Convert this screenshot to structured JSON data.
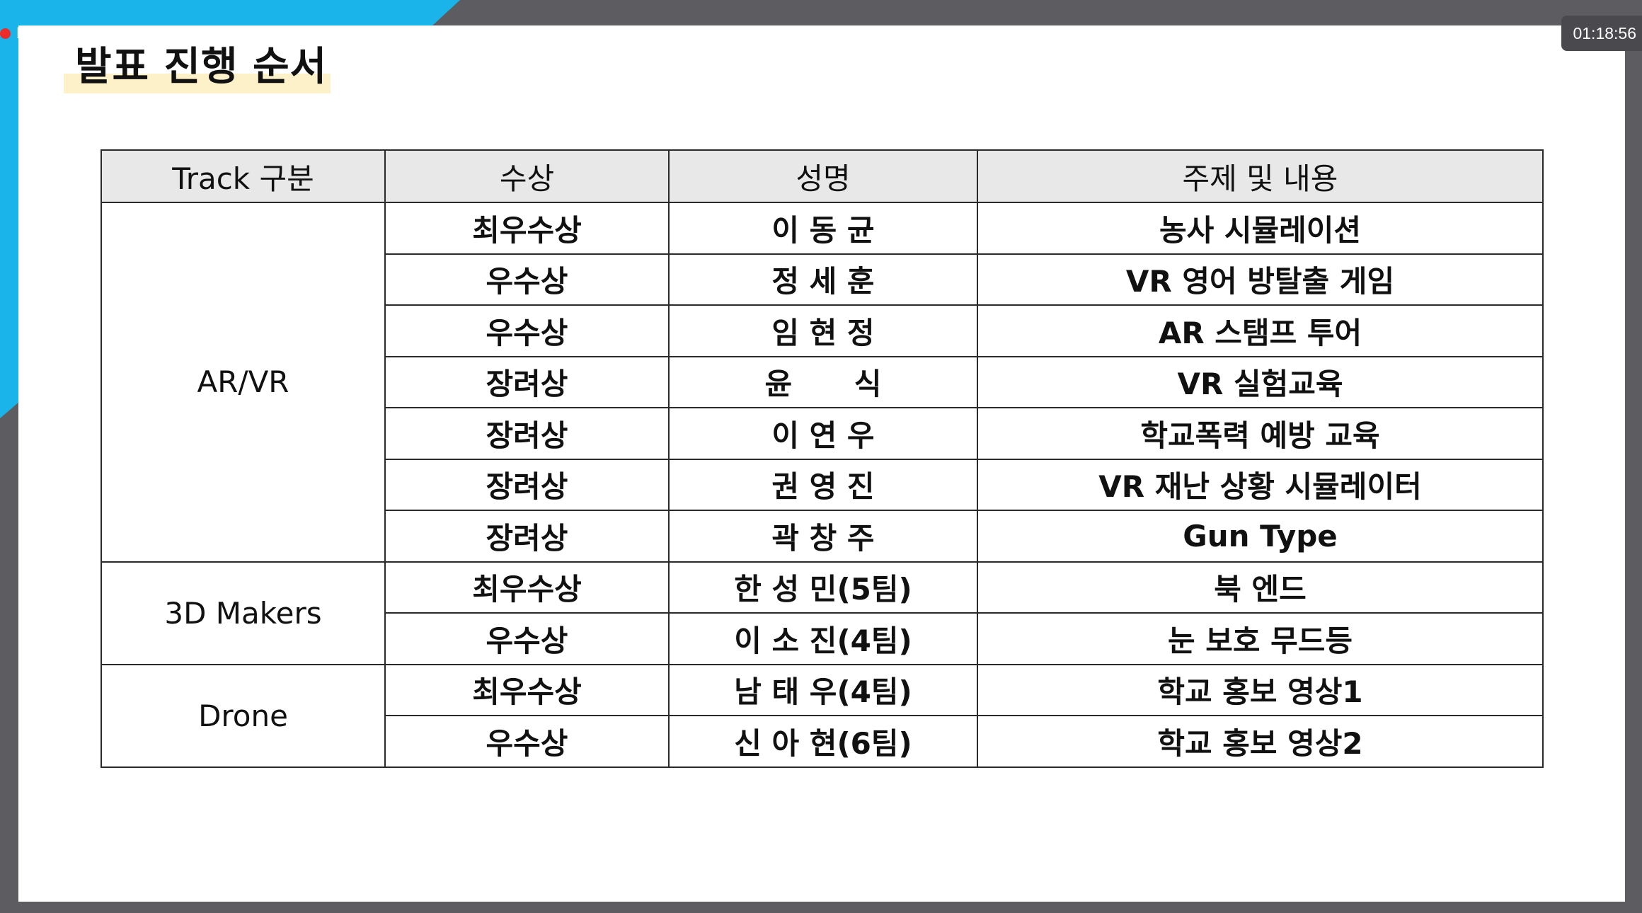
{
  "recording": {
    "label": "Recording"
  },
  "timer": "01:18:56",
  "slide": {
    "title": "발표 진행 순서"
  },
  "table": {
    "headers": [
      "Track 구분",
      "수상",
      "성명",
      "주제 및 내용"
    ],
    "groups": [
      {
        "track": "AR/VR",
        "rows": [
          {
            "award": "최우수상",
            "name": "이 동 균",
            "topic": "농사 시뮬레이션"
          },
          {
            "award": "우수상",
            "name": "정 세 훈",
            "topic": "VR 영어 방탈출 게임"
          },
          {
            "award": "우수상",
            "name": "임 현 정",
            "topic": "AR 스탬프 투어"
          },
          {
            "award": "장려상",
            "name": "윤      식",
            "topic": "VR 실험교육"
          },
          {
            "award": "장려상",
            "name": "이 연 우",
            "topic": "학교폭력 예방 교육"
          },
          {
            "award": "장려상",
            "name": "권 영 진",
            "topic": "VR 재난 상황 시뮬레이터"
          },
          {
            "award": "장려상",
            "name": "곽 창 주",
            "topic": "Gun Type"
          }
        ]
      },
      {
        "track": "3D Makers",
        "rows": [
          {
            "award": "최우수상",
            "name": "한 성 민(5팀)",
            "topic": "북 엔드"
          },
          {
            "award": "우수상",
            "name": "이 소 진(4팀)",
            "topic": "눈 보호 무드등"
          }
        ]
      },
      {
        "track": "Drone",
        "rows": [
          {
            "award": "최우수상",
            "name": "남 태 우(4팀)",
            "topic": "학교 홍보 영상1"
          },
          {
            "award": "우수상",
            "name": "신 아 현(6팀)",
            "topic": "학교 홍보 영상2"
          }
        ]
      }
    ]
  },
  "colors": {
    "accent": "#1ab3ea",
    "frame": "#5d5c60",
    "title_highlight": "#fdf1c9",
    "header_fill": "#e8e8e8",
    "recording_dot": "#ee2b2b"
  }
}
